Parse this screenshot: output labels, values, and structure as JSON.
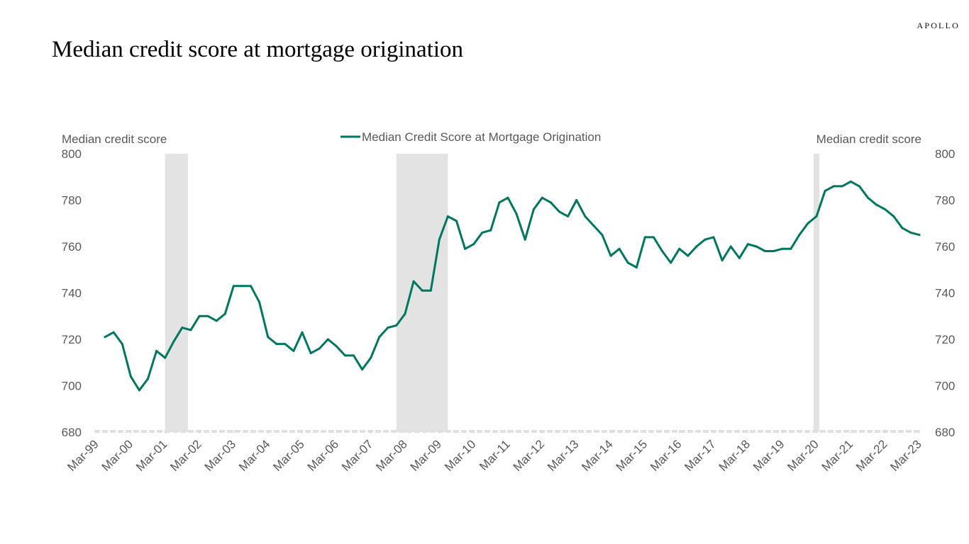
{
  "brand": "APOLLO",
  "title": "Median credit score at mortgage origination",
  "chart_data": {
    "type": "line",
    "title": "Median credit score at mortgage origination",
    "ylabel_left": "Median credit score",
    "ylabel_right": "Median credit score",
    "legend_position": "top-center",
    "grid": false,
    "ylim": [
      680,
      800
    ],
    "yticks": [
      680,
      700,
      720,
      740,
      760,
      780,
      800
    ],
    "xticks": [
      "Mar-99",
      "Mar-00",
      "Mar-01",
      "Mar-02",
      "Mar-03",
      "Mar-04",
      "Mar-05",
      "Mar-06",
      "Mar-07",
      "Mar-08",
      "Mar-09",
      "Mar-10",
      "Mar-11",
      "Mar-12",
      "Mar-13",
      "Mar-14",
      "Mar-15",
      "Mar-16",
      "Mar-17",
      "Mar-18",
      "Mar-19",
      "Mar-20",
      "Mar-21",
      "Mar-22",
      "Mar-23"
    ],
    "recessions": [
      [
        "2001-03",
        "2001-11"
      ],
      [
        "2007-12",
        "2009-06"
      ],
      [
        "2020-02",
        "2020-04"
      ]
    ],
    "series": [
      {
        "name": "Median Credit Score at Mortgage Origination",
        "color": "#00775f",
        "x": [
          "1999-06",
          "1999-09",
          "1999-12",
          "2000-03",
          "2000-06",
          "2000-09",
          "2000-12",
          "2001-03",
          "2001-06",
          "2001-09",
          "2001-12",
          "2002-03",
          "2002-06",
          "2002-09",
          "2002-12",
          "2003-03",
          "2003-06",
          "2003-09",
          "2003-12",
          "2004-03",
          "2004-06",
          "2004-09",
          "2004-12",
          "2005-03",
          "2005-06",
          "2005-09",
          "2005-12",
          "2006-03",
          "2006-06",
          "2006-09",
          "2006-12",
          "2007-03",
          "2007-06",
          "2007-09",
          "2007-12",
          "2008-03",
          "2008-06",
          "2008-09",
          "2008-12",
          "2009-03",
          "2009-06",
          "2009-09",
          "2009-12",
          "2010-03",
          "2010-06",
          "2010-09",
          "2010-12",
          "2011-03",
          "2011-06",
          "2011-09",
          "2011-12",
          "2012-03",
          "2012-06",
          "2012-09",
          "2012-12",
          "2013-03",
          "2013-06",
          "2013-09",
          "2013-12",
          "2014-03",
          "2014-06",
          "2014-09",
          "2014-12",
          "2015-03",
          "2015-06",
          "2015-09",
          "2015-12",
          "2016-03",
          "2016-06",
          "2016-09",
          "2016-12",
          "2017-03",
          "2017-06",
          "2017-09",
          "2017-12",
          "2018-03",
          "2018-06",
          "2018-09",
          "2018-12",
          "2019-03",
          "2019-06",
          "2019-09",
          "2019-12",
          "2020-03",
          "2020-06",
          "2020-09",
          "2020-12",
          "2021-03",
          "2021-06",
          "2021-09",
          "2021-12",
          "2022-03",
          "2022-06",
          "2022-09",
          "2022-12",
          "2023-03"
        ],
        "values": [
          721,
          723,
          718,
          704,
          698,
          703,
          715,
          712,
          719,
          725,
          724,
          730,
          730,
          728,
          731,
          743,
          743,
          743,
          736,
          721,
          718,
          718,
          715,
          723,
          714,
          716,
          720,
          717,
          713,
          713,
          707,
          712,
          721,
          725,
          726,
          731,
          745,
          741,
          741,
          763,
          773,
          771,
          759,
          761,
          766,
          767,
          779,
          781,
          774,
          763,
          776,
          781,
          779,
          775,
          773,
          780,
          773,
          769,
          765,
          756,
          759,
          753,
          751,
          764,
          764,
          758,
          753,
          759,
          756,
          760,
          763,
          764,
          754,
          760,
          755,
          761,
          760,
          758,
          758,
          759,
          759,
          765,
          770,
          773,
          784,
          786,
          786,
          788,
          786,
          781,
          778,
          776,
          773,
          768,
          766,
          765
        ]
      }
    ]
  }
}
